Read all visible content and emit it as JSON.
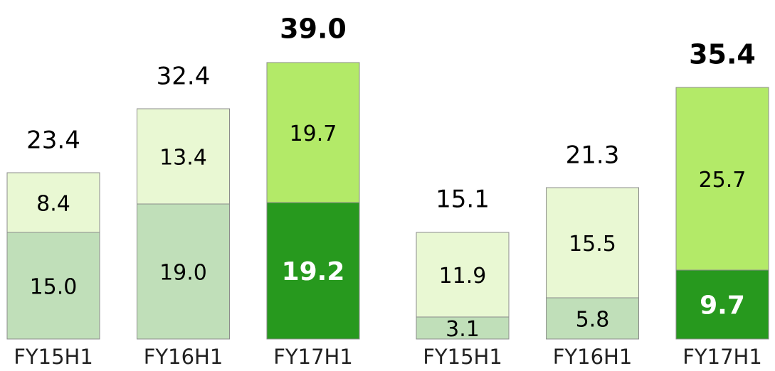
{
  "chart_data": [
    {
      "type": "bar",
      "stacked": true,
      "categories": [
        "FY15H1",
        "FY16H1",
        "FY17H1"
      ],
      "series": [
        {
          "values": [
            15.0,
            19.0,
            19.2
          ],
          "value_labels": [
            "15.0",
            "19.0",
            "19.2"
          ],
          "colors": [
            "#c0dfb9",
            "#c0dfb9",
            "#27991e"
          ],
          "label_colors": [
            "#000000",
            "#000000",
            "#ffffff"
          ]
        },
        {
          "values": [
            8.4,
            13.4,
            19.7
          ],
          "value_labels": [
            "8.4",
            "13.4",
            "19.7"
          ],
          "colors": [
            "#e9f8d3",
            "#e9f8d3",
            "#b3ea68"
          ],
          "label_colors": [
            "#000000",
            "#000000",
            "#000000"
          ]
        }
      ],
      "totals": [
        23.4,
        32.4,
        39.0
      ],
      "total_labels": [
        "23.4",
        "32.4",
        "39.0"
      ],
      "highlight": [
        false,
        false,
        true
      ]
    },
    {
      "type": "bar",
      "stacked": true,
      "categories": [
        "FY15H1",
        "FY16H1",
        "FY17H1"
      ],
      "series": [
        {
          "values": [
            3.1,
            5.8,
            9.7
          ],
          "value_labels": [
            "3.1",
            "5.8",
            "9.7"
          ],
          "colors": [
            "#c0dfb9",
            "#c0dfb9",
            "#27991e"
          ],
          "label_colors": [
            "#000000",
            "#000000",
            "#ffffff"
          ]
        },
        {
          "values": [
            11.9,
            15.5,
            25.7
          ],
          "value_labels": [
            "11.9",
            "15.5",
            "25.7"
          ],
          "colors": [
            "#e9f8d3",
            "#e9f8d3",
            "#b3ea68"
          ],
          "label_colors": [
            "#000000",
            "#000000",
            "#000000"
          ]
        }
      ],
      "totals": [
        15.1,
        21.3,
        35.4
      ],
      "total_labels": [
        "15.1",
        "21.3",
        "35.4"
      ],
      "highlight": [
        false,
        false,
        true
      ]
    }
  ]
}
